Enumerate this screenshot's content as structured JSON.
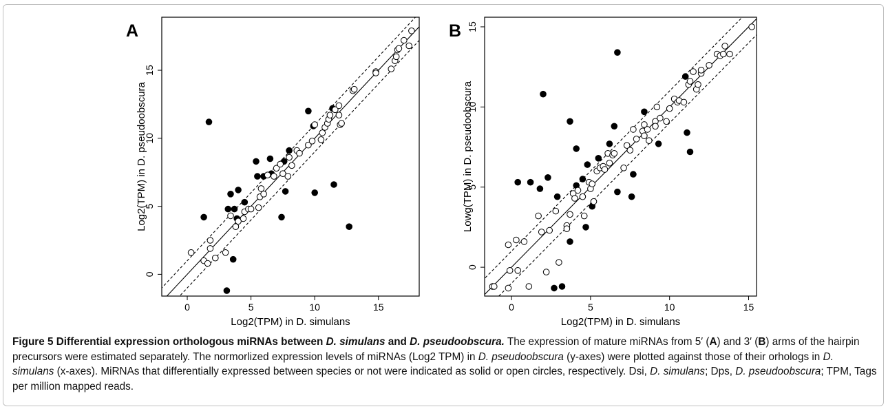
{
  "panels": [
    {
      "letter": "A",
      "xlabel": "Log2(TPM) in D. simulans",
      "ylabel": "Log2(TPM) in D. pseudoobscura"
    },
    {
      "letter": "B",
      "xlabel": "Log2(TPM) in D. simulans",
      "ylabel": "Lowg(TPM) in D. pseudoobscura"
    }
  ],
  "chart_data": [
    {
      "type": "scatter",
      "panel": "A",
      "xlabel": "Log2(TPM) in D. simulans",
      "ylabel": "Log2(TPM) in D. pseudoobscura",
      "xlim": [
        -2,
        18.2
      ],
      "ylim": [
        -1.6,
        18.9
      ],
      "xticks": [
        0,
        5,
        10,
        15
      ],
      "yticks": [
        0,
        5,
        10,
        15
      ],
      "grid": false,
      "reference_lines": [
        {
          "style": "solid",
          "intercept": 0
        },
        {
          "style": "dashed",
          "intercept": 1
        },
        {
          "style": "dashed",
          "intercept": -1
        }
      ],
      "series": [
        {
          "marker": "solid circle",
          "points": [
            [
              1.3,
              4.2
            ],
            [
              1.7,
              11.2
            ],
            [
              3.1,
              -1.2
            ],
            [
              3.2,
              4.8
            ],
            [
              3.4,
              5.9
            ],
            [
              3.6,
              1.1
            ],
            [
              3.7,
              4.8
            ],
            [
              4.0,
              6.2
            ],
            [
              3.9,
              4.1
            ],
            [
              4.5,
              5.3
            ],
            [
              5.4,
              8.3
            ],
            [
              5.5,
              7.2
            ],
            [
              6.0,
              7.2
            ],
            [
              6.5,
              8.5
            ],
            [
              6.6,
              7.4
            ],
            [
              7.4,
              4.2
            ],
            [
              7.6,
              8.3
            ],
            [
              7.7,
              6.1
            ],
            [
              8.0,
              9.1
            ],
            [
              9.5,
              12.0
            ],
            [
              10.0,
              6.0
            ],
            [
              9.9,
              10.9
            ],
            [
              11.4,
              12.2
            ],
            [
              11.5,
              6.6
            ],
            [
              12.7,
              3.5
            ]
          ]
        },
        {
          "marker": "open circle",
          "points": [
            [
              0.3,
              1.6
            ],
            [
              1.3,
              1.0
            ],
            [
              1.6,
              0.8
            ],
            [
              1.8,
              1.9
            ],
            [
              1.8,
              2.5
            ],
            [
              2.2,
              1.2
            ],
            [
              3.0,
              1.6
            ],
            [
              3.4,
              4.3
            ],
            [
              3.8,
              3.5
            ],
            [
              4.0,
              3.9
            ],
            [
              4.4,
              4.1
            ],
            [
              4.5,
              4.6
            ],
            [
              4.8,
              4.8
            ],
            [
              5.0,
              4.8
            ],
            [
              5.6,
              4.9
            ],
            [
              5.7,
              5.7
            ],
            [
              5.8,
              6.3
            ],
            [
              6.0,
              5.9
            ],
            [
              6.3,
              7.3
            ],
            [
              6.8,
              7.2
            ],
            [
              7.0,
              7.8
            ],
            [
              7.3,
              8.1
            ],
            [
              7.5,
              7.4
            ],
            [
              7.9,
              7.2
            ],
            [
              8.0,
              8.6
            ],
            [
              8.2,
              8.0
            ],
            [
              8.6,
              9.1
            ],
            [
              8.8,
              8.9
            ],
            [
              9.5,
              9.5
            ],
            [
              9.8,
              9.8
            ],
            [
              10.0,
              11.0
            ],
            [
              10.5,
              9.9
            ],
            [
              10.6,
              10.4
            ],
            [
              10.8,
              10.8
            ],
            [
              11.0,
              11.1
            ],
            [
              11.1,
              11.4
            ],
            [
              11.2,
              11.7
            ],
            [
              11.6,
              12.1
            ],
            [
              11.9,
              12.4
            ],
            [
              11.9,
              11.7
            ],
            [
              12.0,
              11.0
            ],
            [
              12.1,
              11.1
            ],
            [
              13.0,
              13.5
            ],
            [
              13.1,
              13.6
            ],
            [
              14.8,
              14.9
            ],
            [
              14.8,
              14.8
            ],
            [
              16.0,
              15.1
            ],
            [
              16.3,
              15.7
            ],
            [
              16.4,
              16.0
            ],
            [
              16.5,
              16.5
            ],
            [
              16.6,
              16.6
            ],
            [
              17.0,
              17.2
            ],
            [
              17.4,
              16.8
            ],
            [
              17.6,
              17.9
            ]
          ]
        }
      ]
    },
    {
      "type": "scatter",
      "panel": "B",
      "xlabel": "Log2(TPM) in D. simulans",
      "ylabel": "Lowg(TPM) in D. pseudoobscura",
      "xlim": [
        -1.7,
        15.5
      ],
      "ylim": [
        -1.8,
        15.6
      ],
      "xticks": [
        0,
        5,
        10,
        15
      ],
      "yticks": [
        0,
        5,
        10,
        15
      ],
      "grid": false,
      "reference_lines": [
        {
          "style": "solid",
          "intercept": 0
        },
        {
          "style": "dashed",
          "intercept": 1
        },
        {
          "style": "dashed",
          "intercept": -1
        }
      ],
      "series": [
        {
          "marker": "solid circle",
          "points": [
            [
              0.4,
              5.3
            ],
            [
              1.2,
              5.3
            ],
            [
              1.8,
              4.9
            ],
            [
              2.0,
              10.8
            ],
            [
              2.3,
              5.6
            ],
            [
              2.7,
              -1.3
            ],
            [
              2.9,
              4.4
            ],
            [
              3.2,
              -1.2
            ],
            [
              3.7,
              9.1
            ],
            [
              3.7,
              1.6
            ],
            [
              4.1,
              5.1
            ],
            [
              4.1,
              7.4
            ],
            [
              4.5,
              5.5
            ],
            [
              4.7,
              2.5
            ],
            [
              4.8,
              6.4
            ],
            [
              5.1,
              3.8
            ],
            [
              5.5,
              6.8
            ],
            [
              6.2,
              7.7
            ],
            [
              6.5,
              8.8
            ],
            [
              6.7,
              13.4
            ],
            [
              6.7,
              4.7
            ],
            [
              7.6,
              4.4
            ],
            [
              7.7,
              5.8
            ],
            [
              8.4,
              9.7
            ],
            [
              9.3,
              7.7
            ],
            [
              11.0,
              11.9
            ],
            [
              11.1,
              8.4
            ],
            [
              11.3,
              7.2
            ]
          ]
        },
        {
          "marker": "open circle",
          "points": [
            [
              -1.2,
              -1.2
            ],
            [
              -1.1,
              -1.2
            ],
            [
              -0.2,
              -1.3
            ],
            [
              -0.1,
              -0.2
            ],
            [
              -0.2,
              1.4
            ],
            [
              0.3,
              1.7
            ],
            [
              0.4,
              -0.2
            ],
            [
              0.8,
              1.6
            ],
            [
              1.1,
              -1.2
            ],
            [
              1.7,
              3.2
            ],
            [
              1.9,
              2.2
            ],
            [
              2.2,
              -0.3
            ],
            [
              2.4,
              2.3
            ],
            [
              2.8,
              3.5
            ],
            [
              3.0,
              0.3
            ],
            [
              3.5,
              2.6
            ],
            [
              3.5,
              2.4
            ],
            [
              3.7,
              3.3
            ],
            [
              3.9,
              4.6
            ],
            [
              4.0,
              4.3
            ],
            [
              4.2,
              4.8
            ],
            [
              4.5,
              4.4
            ],
            [
              4.6,
              3.2
            ],
            [
              4.9,
              5.3
            ],
            [
              5.0,
              4.9
            ],
            [
              5.1,
              5.2
            ],
            [
              5.2,
              4.1
            ],
            [
              5.4,
              6.0
            ],
            [
              5.6,
              6.2
            ],
            [
              5.8,
              6.3
            ],
            [
              5.9,
              6.1
            ],
            [
              6.1,
              7.1
            ],
            [
              6.2,
              6.5
            ],
            [
              6.4,
              7.0
            ],
            [
              6.5,
              7.1
            ],
            [
              7.1,
              6.2
            ],
            [
              7.3,
              7.6
            ],
            [
              7.5,
              7.3
            ],
            [
              7.7,
              8.6
            ],
            [
              7.9,
              8.0
            ],
            [
              8.3,
              8.5
            ],
            [
              8.4,
              8.2
            ],
            [
              8.4,
              8.9
            ],
            [
              8.6,
              8.6
            ],
            [
              8.7,
              7.9
            ],
            [
              9.1,
              9.1
            ],
            [
              9.1,
              8.8
            ],
            [
              9.2,
              10.0
            ],
            [
              9.4,
              9.3
            ],
            [
              9.8,
              9.1
            ],
            [
              10.0,
              9.9
            ],
            [
              10.3,
              10.5
            ],
            [
              10.5,
              10.3
            ],
            [
              10.6,
              10.4
            ],
            [
              10.9,
              10.3
            ],
            [
              11.2,
              11.4
            ],
            [
              11.3,
              11.6
            ],
            [
              11.5,
              12.2
            ],
            [
              11.7,
              11.1
            ],
            [
              11.8,
              11.4
            ],
            [
              12.0,
              12.1
            ],
            [
              12.0,
              12.3
            ],
            [
              12.5,
              12.6
            ],
            [
              13.0,
              13.3
            ],
            [
              13.2,
              13.2
            ],
            [
              13.4,
              13.3
            ],
            [
              13.5,
              13.8
            ],
            [
              13.8,
              13.3
            ],
            [
              15.2,
              15.0
            ]
          ]
        }
      ]
    }
  ],
  "caption": {
    "fig_number": "Figure 5",
    "title_1": "Differential expression orthologous miRNAs between",
    "title_sim": "D. simulans",
    "title_and": "and",
    "title_pse": "D. pseudoobscura.",
    "body_1": "The expression of mature miRNAs from 5′ (",
    "body_a": "A",
    "body_2": ") and 3′ (",
    "body_b": "B",
    "body_3": ") arms of the hairpin precursors were estimated separately. The normorlized expression levels of miRNAs (Log2 TPM) in",
    "body_pse": "D. pseudoobscura",
    "body_4": "(y-axes) were plotted against those of their orhologs in",
    "body_sim": "D. simulans",
    "body_5": "(x-axes). MiRNAs that differentially expressed between species or not were indicated as solid or open circles, respectively. Dsi,",
    "body_sim2": "D. simulans",
    "body_6": "; Dps,",
    "body_pse2": "D. pseudoobscura",
    "body_7": "; TPM, Tags per million mapped reads."
  }
}
